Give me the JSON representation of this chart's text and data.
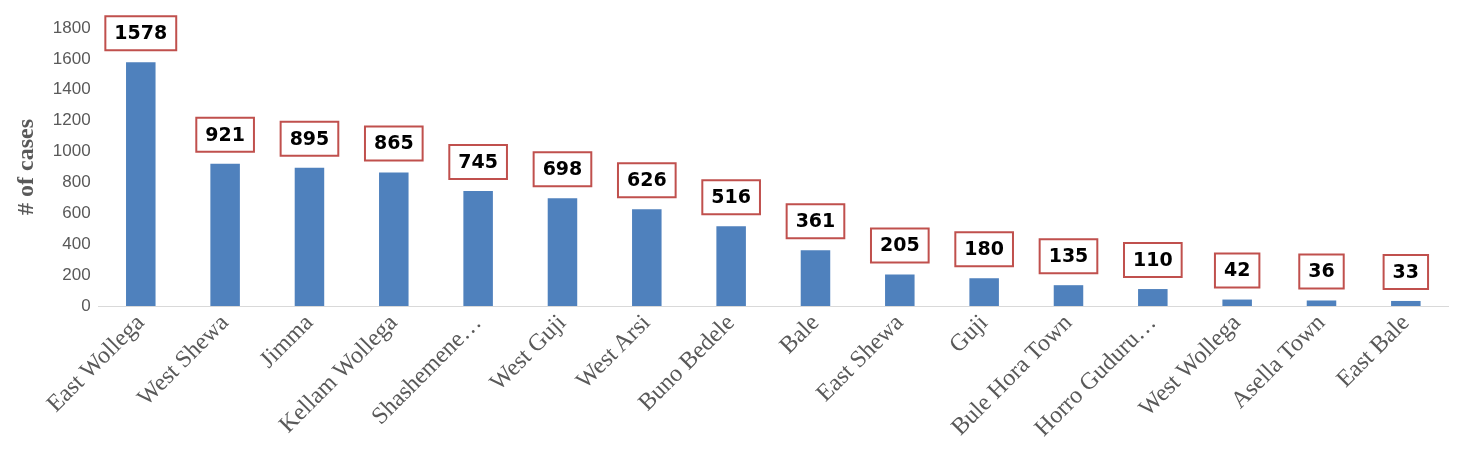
{
  "chart_data": {
    "type": "bar",
    "ylabel": "# of cases",
    "categories": [
      "East Wollega",
      "West Shewa",
      "Jimma",
      "Kellam Wollega",
      "Shashemene…",
      "West Guji",
      "West Arsi",
      "Buno Bedele",
      "Bale",
      "East Shewa",
      "Guji",
      "Bule Hora Town",
      "Horro Guduru…",
      "West Wollega",
      "Asella Town",
      "East Bale"
    ],
    "values": [
      1578,
      921,
      895,
      865,
      745,
      698,
      626,
      516,
      361,
      205,
      180,
      135,
      110,
      42,
      36,
      33
    ],
    "color": "#4f81bd",
    "ylim": [
      0,
      1800
    ],
    "yticks": [
      0,
      200,
      400,
      600,
      800,
      1000,
      1200,
      1400,
      1600,
      1800
    ],
    "grid": false,
    "legend": false,
    "data_labels": true
  }
}
